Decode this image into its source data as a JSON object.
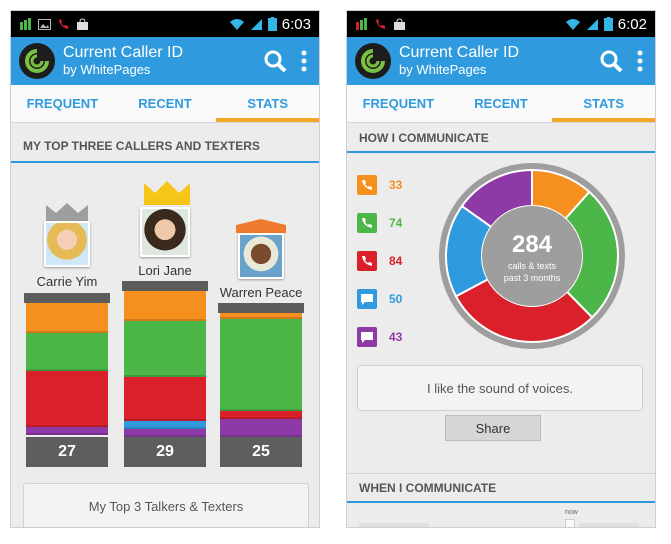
{
  "status_time_left": "6:03",
  "status_time_right": "6:02",
  "app": {
    "title": "Current Caller ID",
    "subtitle": "by WhitePages"
  },
  "tabs": [
    "FREQUENT",
    "RECENT",
    "STATS"
  ],
  "left": {
    "section_title": "MY TOP THREE CALLERS AND TEXTERS",
    "callers": [
      {
        "name": "Carrie Yim",
        "total": "27",
        "crown_color": "#9e9e9e"
      },
      {
        "name": "Lori Jane",
        "total": "29",
        "crown_color": "#f5c518"
      },
      {
        "name": "Warren Peace",
        "total": "25",
        "crown_color": "#f07b2f"
      }
    ],
    "card_text": "My Top 3 Talkers & Texters"
  },
  "right": {
    "section_title": "HOW I COMMUNICATE",
    "stats": [
      {
        "icon": "incoming-call-icon",
        "value": "33",
        "color": "#f5901e"
      },
      {
        "icon": "outgoing-call-icon",
        "value": "74",
        "color": "#4cb748"
      },
      {
        "icon": "missed-call-icon",
        "value": "84",
        "color": "#d9202b"
      },
      {
        "icon": "incoming-text-icon",
        "value": "50",
        "color": "#2f9bde"
      },
      {
        "icon": "outgoing-text-icon",
        "value": "43",
        "color": "#8e3aa6"
      }
    ],
    "donut_total": "284",
    "donut_caption_1": "calls & texts",
    "donut_caption_2": "past 3 months",
    "quote": "I like the sound of voices.",
    "share_label": "Share",
    "section2_title": "WHEN I COMMUNICATE",
    "now_label": "now"
  },
  "colors": {
    "blue": "#2f9bde",
    "orange": "#f5901e",
    "green": "#4cb748",
    "red": "#d9202b",
    "purple": "#8e3aa6",
    "tab_underline": "#f5a623"
  }
}
